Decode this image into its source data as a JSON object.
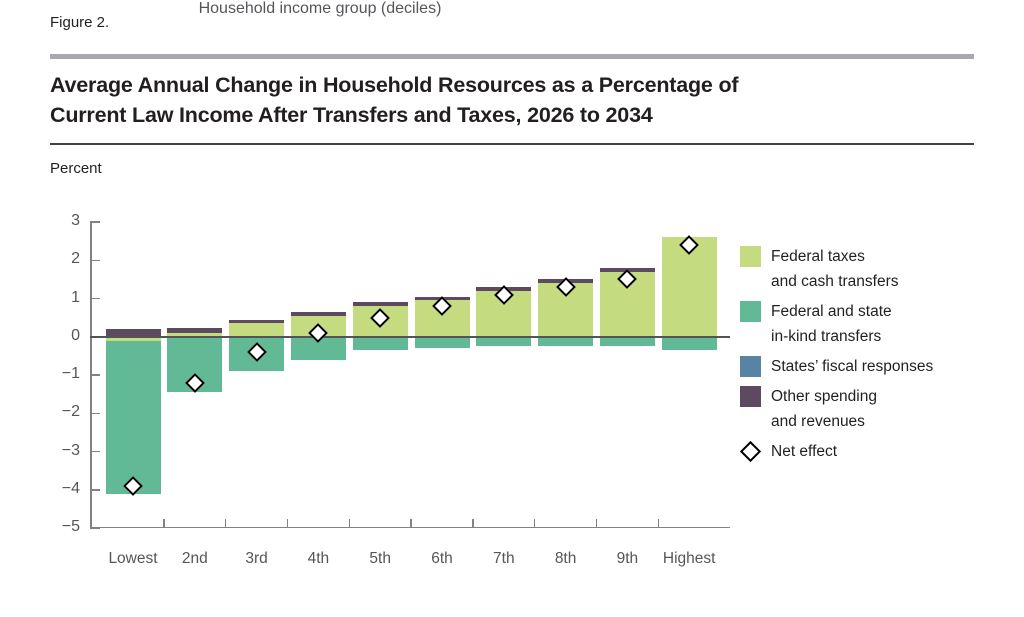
{
  "figure_label": "Figure 2.",
  "chart_data": {
    "type": "bar",
    "stacked": true,
    "title": "Average Annual Change in Household Resources as a Percentage of Current Law Income After Transfers and Taxes, 2026 to 2034",
    "title_lines": [
      "Average Annual Change in Household Resources as a Percentage of",
      "Current Law Income After Transfers and Taxes, 2026 to 2034"
    ],
    "ylabel": "Percent",
    "xlabel": "Household income group (deciles)",
    "ylim": [
      -5,
      3
    ],
    "yticks": [
      3,
      2,
      1,
      0,
      -1,
      -2,
      -3,
      -4,
      -5
    ],
    "grid": false,
    "zero_line": true,
    "legend_position": "right",
    "categories": [
      "Lowest",
      "2nd",
      "3rd",
      "4th",
      "5th",
      "6th",
      "7th",
      "8th",
      "9th",
      "Highest"
    ],
    "series": [
      {
        "name": "Federal taxes and cash transfers",
        "legend_lines": [
          "Federal taxes",
          "and cash transfers"
        ],
        "color": "#c5db7f",
        "values": [
          -0.1,
          0.1,
          0.35,
          0.55,
          0.8,
          0.95,
          1.2,
          1.4,
          1.7,
          2.6
        ]
      },
      {
        "name": "Federal and state in-kind transfers",
        "legend_lines": [
          "Federal and state",
          "in-kind transfers"
        ],
        "color": "#61ba95",
        "values": [
          -4.0,
          -1.45,
          -0.9,
          -0.6,
          -0.35,
          -0.3,
          -0.25,
          -0.25,
          -0.25,
          -0.35
        ]
      },
      {
        "name": "States’ fiscal responses",
        "legend_lines": [
          "States’ fiscal responses"
        ],
        "color": "#5784a2",
        "values": [
          0,
          0,
          0,
          0,
          0,
          0,
          0,
          0,
          0,
          0
        ]
      },
      {
        "name": "Other spending and revenues",
        "legend_lines": [
          "Other spending",
          "and revenues"
        ],
        "color": "#5e4a60",
        "values": [
          0.2,
          0.12,
          0.1,
          0.1,
          0.1,
          0.1,
          0.1,
          0.1,
          0.1,
          0
        ]
      }
    ],
    "markers": {
      "name": "Net effect",
      "legend_lines": [
        "Net effect"
      ],
      "values": [
        -3.9,
        -1.2,
        -0.4,
        0.1,
        0.5,
        0.8,
        1.1,
        1.3,
        1.5,
        2.4
      ]
    }
  }
}
